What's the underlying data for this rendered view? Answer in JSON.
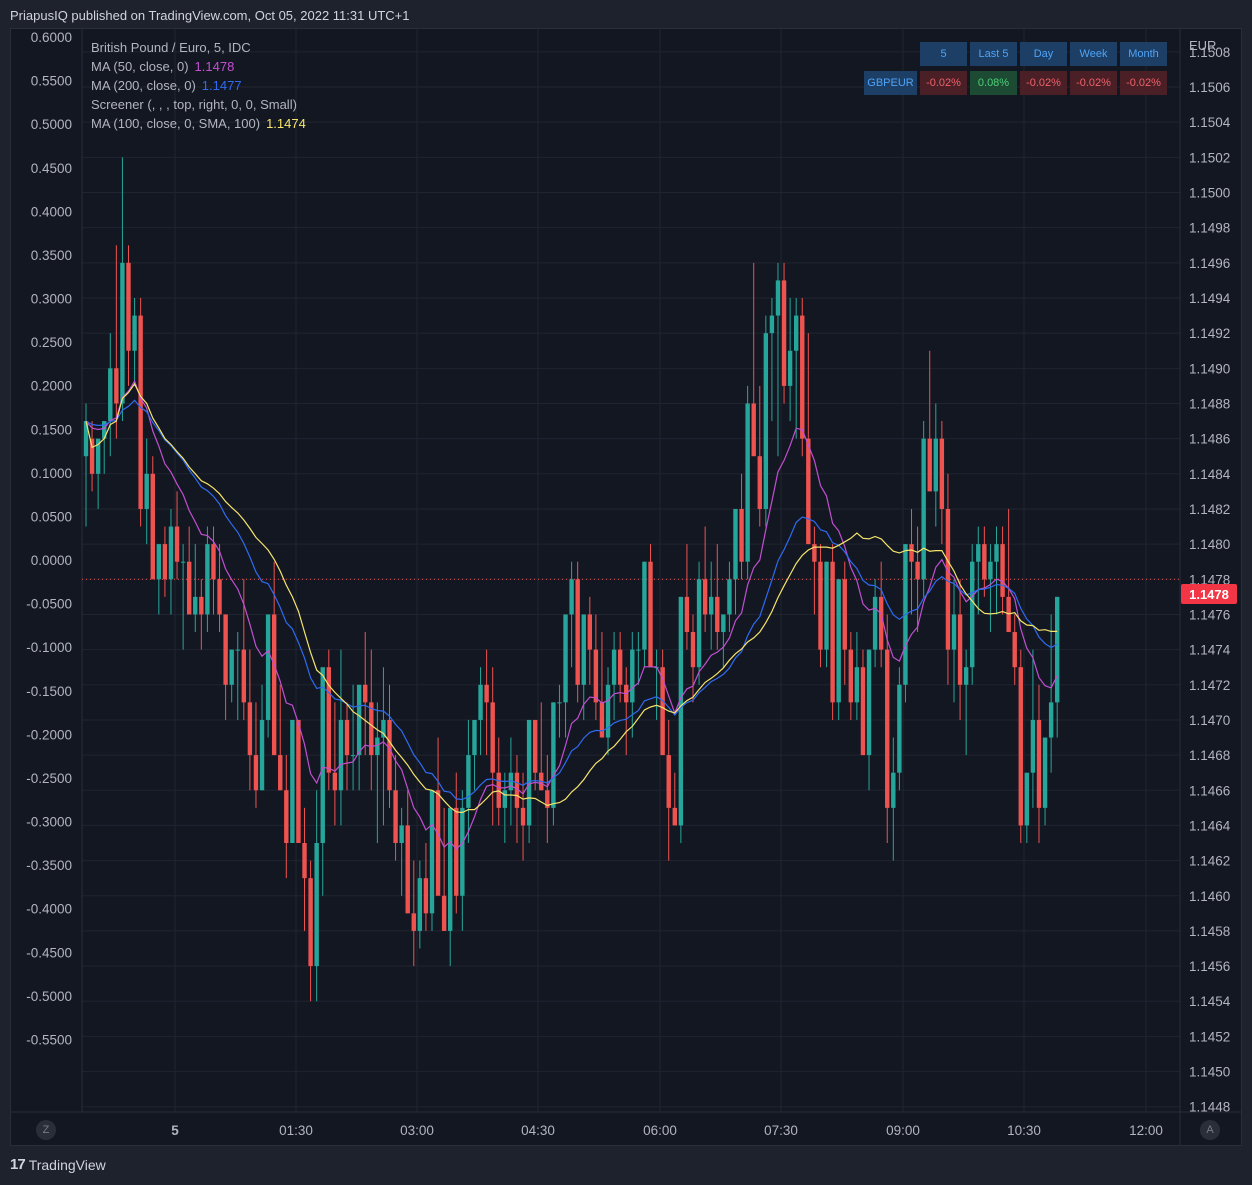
{
  "header": {
    "text": "PriapusIQ published on TradingView.com, Oct 05, 2022 11:31 UTC+1"
  },
  "legend": [
    {
      "label": "British Pound / Euro, 5, IDC",
      "value": "",
      "color": "#b2b5be"
    },
    {
      "label": "MA (50, close, 0)",
      "value": "1.1478",
      "color": "#c24fd1"
    },
    {
      "label": "MA (200, close, 0)",
      "value": "1.1477",
      "color": "#2f6bef"
    },
    {
      "label": "Screener (, , , top, right, 0, 0, Small)",
      "value": "",
      "color": "#b2b5be"
    },
    {
      "label": "MA (100, close, 0, SMA, 100)",
      "value": "1.1474",
      "color": "#f5e46b"
    }
  ],
  "screener": {
    "headers": [
      "5",
      "Last 5",
      "Day",
      "Week",
      "Month"
    ],
    "symbol": "GBPEUR",
    "values": [
      "-0.02%",
      "0.08%",
      "-0.02%",
      "-0.02%",
      "-0.02%"
    ]
  },
  "price_label": "1.1478",
  "right_axis_unit": "EUR",
  "buttons": {
    "left": "Z",
    "right": "A"
  },
  "footer": {
    "logo": "17",
    "brand": "TradingView"
  },
  "chart_data": {
    "type": "candlestick",
    "symbol": "British Pound / Euro, 5, IDC",
    "left_axis": {
      "ticks": [
        "0.6000",
        "0.5500",
        "0.5000",
        "0.4500",
        "0.4000",
        "0.3500",
        "0.3000",
        "0.2500",
        "0.2000",
        "0.1500",
        "0.1000",
        "0.0500",
        "0.0000",
        "-0.0500",
        "-0.1000",
        "-0.1500",
        "-0.2000",
        "-0.2500",
        "-0.3000",
        "-0.3500",
        "-0.4000",
        "-0.4500",
        "-0.5000",
        "-0.5500"
      ],
      "range": [
        -0.6,
        0.6
      ]
    },
    "right_axis": {
      "ticks": [
        "1.1508",
        "1.1506",
        "1.1504",
        "1.1502",
        "1.1500",
        "1.1498",
        "1.1496",
        "1.1494",
        "1.1492",
        "1.1490",
        "1.1488",
        "1.1486",
        "1.1484",
        "1.1482",
        "1.1480",
        "1.1478",
        "1.1476",
        "1.1474",
        "1.1472",
        "1.1470",
        "1.1468",
        "1.1466",
        "1.1464",
        "1.1462",
        "1.1460",
        "1.1458",
        "1.1456",
        "1.1454",
        "1.1452",
        "1.1450",
        "1.1448"
      ],
      "range": [
        1.14477,
        1.15093
      ]
    },
    "x_axis": {
      "ticks": [
        "5",
        "01:30",
        "03:00",
        "04:30",
        "06:00",
        "07:30",
        "09:00",
        "10:30",
        "12:00"
      ]
    },
    "current_price": 1.1478,
    "colors": {
      "up": "#26a69a",
      "down": "#ef5350"
    },
    "ohlc": [
      [
        1.1485,
        1.1488,
        1.1481,
        1.1487
      ],
      [
        1.1486,
        1.1487,
        1.1483,
        1.1484
      ],
      [
        1.1484,
        1.1485,
        1.1482,
        1.1486
      ],
      [
        1.1486,
        1.1487,
        1.1484,
        1.1487
      ],
      [
        1.1487,
        1.1492,
        1.1485,
        1.149
      ],
      [
        1.149,
        1.1497,
        1.1486,
        1.1488
      ],
      [
        1.1488,
        1.1502,
        1.1487,
        1.1496
      ],
      [
        1.1496,
        1.1497,
        1.1489,
        1.1491
      ],
      [
        1.1491,
        1.1494,
        1.1489,
        1.1493
      ],
      [
        1.1493,
        1.1494,
        1.1481,
        1.1482
      ],
      [
        1.1482,
        1.1486,
        1.148,
        1.1484
      ],
      [
        1.1484,
        1.1485,
        1.1479,
        1.1478
      ],
      [
        1.1478,
        1.148,
        1.1476,
        1.148
      ],
      [
        1.148,
        1.1481,
        1.1477,
        1.1478
      ],
      [
        1.1478,
        1.1482,
        1.1476,
        1.1481
      ],
      [
        1.1481,
        1.1483,
        1.1478,
        1.1479
      ],
      [
        1.1479,
        1.148,
        1.1474,
        1.1479
      ],
      [
        1.1479,
        1.1481,
        1.1476,
        1.1476
      ],
      [
        1.1476,
        1.148,
        1.1475,
        1.1477
      ],
      [
        1.1477,
        1.1478,
        1.1474,
        1.1476
      ],
      [
        1.1476,
        1.1481,
        1.1475,
        1.148
      ],
      [
        1.148,
        1.1481,
        1.1476,
        1.1478
      ],
      [
        1.1478,
        1.148,
        1.1475,
        1.1476
      ],
      [
        1.1476,
        1.1476,
        1.147,
        1.1472
      ],
      [
        1.1472,
        1.1474,
        1.1471,
        1.1474
      ],
      [
        1.1474,
        1.1475,
        1.147,
        1.1474
      ],
      [
        1.1474,
        1.1478,
        1.147,
        1.1471
      ],
      [
        1.1471,
        1.1474,
        1.1466,
        1.1468
      ],
      [
        1.1468,
        1.1471,
        1.1465,
        1.1466
      ],
      [
        1.1466,
        1.1472,
        1.1466,
        1.147
      ],
      [
        1.147,
        1.1476,
        1.1469,
        1.1476
      ],
      [
        1.1476,
        1.1479,
        1.1468,
        1.1468
      ],
      [
        1.1468,
        1.1472,
        1.1466,
        1.1466
      ],
      [
        1.1466,
        1.1468,
        1.1461,
        1.1463
      ],
      [
        1.1463,
        1.147,
        1.1463,
        1.147
      ],
      [
        1.147,
        1.147,
        1.1464,
        1.1463
      ],
      [
        1.1463,
        1.1465,
        1.1458,
        1.1461
      ],
      [
        1.1461,
        1.1462,
        1.1454,
        1.1456
      ],
      [
        1.1456,
        1.1466,
        1.1454,
        1.1463
      ],
      [
        1.1463,
        1.1471,
        1.146,
        1.1473
      ],
      [
        1.1473,
        1.1474,
        1.1466,
        1.1467
      ],
      [
        1.1467,
        1.1471,
        1.1464,
        1.1466
      ],
      [
        1.1466,
        1.1474,
        1.1464,
        1.147
      ],
      [
        1.147,
        1.1471,
        1.1466,
        1.1468
      ],
      [
        1.1468,
        1.1472,
        1.1466,
        1.1468
      ],
      [
        1.1468,
        1.1472,
        1.1466,
        1.1472
      ],
      [
        1.1472,
        1.1475,
        1.1468,
        1.1471
      ],
      [
        1.1471,
        1.1474,
        1.1466,
        1.1468
      ],
      [
        1.1468,
        1.1471,
        1.1463,
        1.1469
      ],
      [
        1.1469,
        1.1473,
        1.1464,
        1.147
      ],
      [
        1.147,
        1.1472,
        1.1465,
        1.1466
      ],
      [
        1.1466,
        1.1468,
        1.1462,
        1.1463
      ],
      [
        1.1463,
        1.1465,
        1.146,
        1.1464
      ],
      [
        1.1464,
        1.1466,
        1.1459,
        1.1459
      ],
      [
        1.1459,
        1.1462,
        1.1456,
        1.1458
      ],
      [
        1.1458,
        1.1462,
        1.1457,
        1.1461
      ],
      [
        1.1461,
        1.1463,
        1.1458,
        1.1459
      ],
      [
        1.1459,
        1.1466,
        1.1458,
        1.1466
      ],
      [
        1.1466,
        1.1469,
        1.1464,
        1.146
      ],
      [
        1.146,
        1.1465,
        1.1458,
        1.1458
      ],
      [
        1.1458,
        1.1459,
        1.1456,
        1.1465
      ],
      [
        1.1465,
        1.1467,
        1.1459,
        1.146
      ],
      [
        1.146,
        1.1466,
        1.1458,
        1.1465
      ],
      [
        1.1465,
        1.147,
        1.1463,
        1.1468
      ],
      [
        1.1468,
        1.147,
        1.1466,
        1.147
      ],
      [
        1.147,
        1.1473,
        1.1468,
        1.1472
      ],
      [
        1.1472,
        1.1474,
        1.1468,
        1.1471
      ],
      [
        1.1471,
        1.1473,
        1.1464,
        1.1467
      ],
      [
        1.1467,
        1.1469,
        1.1464,
        1.1465
      ],
      [
        1.1465,
        1.1467,
        1.1463,
        1.1466
      ],
      [
        1.1466,
        1.1469,
        1.1464,
        1.1467
      ],
      [
        1.1467,
        1.1468,
        1.1463,
        1.1465
      ],
      [
        1.1465,
        1.1467,
        1.1462,
        1.1464
      ],
      [
        1.1464,
        1.147,
        1.1463,
        1.147
      ],
      [
        1.147,
        1.147,
        1.1466,
        1.1467
      ],
      [
        1.1467,
        1.1471,
        1.1466,
        1.1466
      ],
      [
        1.1466,
        1.1468,
        1.1463,
        1.1465
      ],
      [
        1.1465,
        1.1471,
        1.1464,
        1.1471
      ],
      [
        1.1471,
        1.1472,
        1.1469,
        1.1471
      ],
      [
        1.1471,
        1.1476,
        1.1469,
        1.1476
      ],
      [
        1.1476,
        1.1479,
        1.1473,
        1.1478
      ],
      [
        1.1478,
        1.1479,
        1.1471,
        1.1472
      ],
      [
        1.1472,
        1.1476,
        1.147,
        1.1476
      ],
      [
        1.1476,
        1.1477,
        1.1472,
        1.1474
      ],
      [
        1.1474,
        1.1476,
        1.147,
        1.1471
      ],
      [
        1.1471,
        1.1475,
        1.1469,
        1.1469
      ],
      [
        1.1469,
        1.1473,
        1.1468,
        1.1472
      ],
      [
        1.1472,
        1.1475,
        1.147,
        1.1474
      ],
      [
        1.1474,
        1.1475,
        1.1471,
        1.1472
      ],
      [
        1.1472,
        1.1473,
        1.1468,
        1.1471
      ],
      [
        1.1471,
        1.1475,
        1.1469,
        1.1474
      ],
      [
        1.1474,
        1.1475,
        1.1472,
        1.1474
      ],
      [
        1.1474,
        1.1479,
        1.1473,
        1.1479
      ],
      [
        1.1479,
        1.148,
        1.1473,
        1.1473
      ],
      [
        1.1473,
        1.1474,
        1.147,
        1.1473
      ],
      [
        1.1473,
        1.1474,
        1.1469,
        1.1468
      ],
      [
        1.1468,
        1.147,
        1.1462,
        1.1465
      ],
      [
        1.1465,
        1.1467,
        1.1464,
        1.1464
      ],
      [
        1.1464,
        1.1477,
        1.1463,
        1.1477
      ],
      [
        1.1477,
        1.148,
        1.1474,
        1.1475
      ],
      [
        1.1475,
        1.1476,
        1.1471,
        1.1473
      ],
      [
        1.1473,
        1.1479,
        1.1472,
        1.1478
      ],
      [
        1.1478,
        1.1481,
        1.1475,
        1.1476
      ],
      [
        1.1476,
        1.1479,
        1.1474,
        1.1477
      ],
      [
        1.1477,
        1.148,
        1.1474,
        1.1475
      ],
      [
        1.1475,
        1.1476,
        1.1473,
        1.1476
      ],
      [
        1.1476,
        1.1479,
        1.1475,
        1.1478
      ],
      [
        1.1478,
        1.1482,
        1.1476,
        1.1482
      ],
      [
        1.1482,
        1.1484,
        1.1478,
        1.1479
      ],
      [
        1.1479,
        1.1489,
        1.1478,
        1.1488
      ],
      [
        1.1488,
        1.1496,
        1.1486,
        1.1485
      ],
      [
        1.1485,
        1.1489,
        1.1481,
        1.1482
      ],
      [
        1.1482,
        1.1493,
        1.1481,
        1.1492
      ],
      [
        1.1492,
        1.1494,
        1.1487,
        1.1493
      ],
      [
        1.1493,
        1.1496,
        1.1485,
        1.1495
      ],
      [
        1.1495,
        1.1496,
        1.1488,
        1.1489
      ],
      [
        1.1489,
        1.1494,
        1.1487,
        1.1491
      ],
      [
        1.1491,
        1.1494,
        1.1486,
        1.1493
      ],
      [
        1.1493,
        1.1494,
        1.1485,
        1.1486
      ],
      [
        1.1486,
        1.1492,
        1.148,
        1.148
      ],
      [
        1.148,
        1.1481,
        1.1476,
        1.1479
      ],
      [
        1.1479,
        1.148,
        1.1473,
        1.1474
      ],
      [
        1.1474,
        1.1479,
        1.1473,
        1.1479
      ],
      [
        1.1479,
        1.148,
        1.147,
        1.1471
      ],
      [
        1.1471,
        1.1478,
        1.147,
        1.1478
      ],
      [
        1.1478,
        1.1479,
        1.1472,
        1.1474
      ],
      [
        1.1474,
        1.1475,
        1.147,
        1.1471
      ],
      [
        1.1471,
        1.1475,
        1.147,
        1.1473
      ],
      [
        1.1473,
        1.1474,
        1.1468,
        1.1468
      ],
      [
        1.1468,
        1.1474,
        1.1466,
        1.1474
      ],
      [
        1.1474,
        1.1478,
        1.1473,
        1.1477
      ],
      [
        1.1477,
        1.1479,
        1.1473,
        1.1474
      ],
      [
        1.1474,
        1.1476,
        1.1463,
        1.1465
      ],
      [
        1.1465,
        1.1469,
        1.1462,
        1.1467
      ],
      [
        1.1467,
        1.1473,
        1.1466,
        1.1472
      ],
      [
        1.1472,
        1.148,
        1.1471,
        1.148
      ],
      [
        1.148,
        1.1482,
        1.1476,
        1.1479
      ],
      [
        1.1479,
        1.1481,
        1.1475,
        1.1478
      ],
      [
        1.1478,
        1.1487,
        1.1477,
        1.1486
      ],
      [
        1.1486,
        1.1491,
        1.1484,
        1.1483
      ],
      [
        1.1483,
        1.1488,
        1.1481,
        1.1486
      ],
      [
        1.1486,
        1.1487,
        1.148,
        1.1482
      ],
      [
        1.1482,
        1.1484,
        1.1472,
        1.1474
      ],
      [
        1.1474,
        1.1478,
        1.1471,
        1.1476
      ],
      [
        1.1476,
        1.1478,
        1.147,
        1.1472
      ],
      [
        1.1472,
        1.1474,
        1.1468,
        1.1473
      ],
      [
        1.1473,
        1.148,
        1.1472,
        1.1479
      ],
      [
        1.1479,
        1.1481,
        1.1476,
        1.148
      ],
      [
        1.148,
        1.1481,
        1.1477,
        1.1478
      ],
      [
        1.1478,
        1.148,
        1.1475,
        1.1479
      ],
      [
        1.1479,
        1.1481,
        1.1476,
        1.148
      ],
      [
        1.148,
        1.1481,
        1.1476,
        1.1477
      ],
      [
        1.1477,
        1.1482,
        1.1476,
        1.1475
      ],
      [
        1.1475,
        1.1476,
        1.1472,
        1.1473
      ],
      [
        1.1473,
        1.1474,
        1.1463,
        1.1464
      ],
      [
        1.1464,
        1.1466,
        1.1463,
        1.1467
      ],
      [
        1.1467,
        1.1474,
        1.1465,
        1.147
      ],
      [
        1.147,
        1.1472,
        1.1463,
        1.1465
      ],
      [
        1.1465,
        1.1468,
        1.1464,
        1.1469
      ],
      [
        1.1469,
        1.1476,
        1.1467,
        1.1471
      ],
      [
        1.1471,
        1.1477,
        1.1469,
        1.1477
      ]
    ],
    "series": [
      {
        "name": "MA (50, close, 0)",
        "color": "#c24fd1",
        "last": 1.1478
      },
      {
        "name": "MA (200, close, 0)",
        "color": "#2f6bef",
        "last": 1.1477
      },
      {
        "name": "MA (100, close, 0, SMA, 100)",
        "color": "#f5e46b",
        "last": 1.1474
      }
    ]
  }
}
